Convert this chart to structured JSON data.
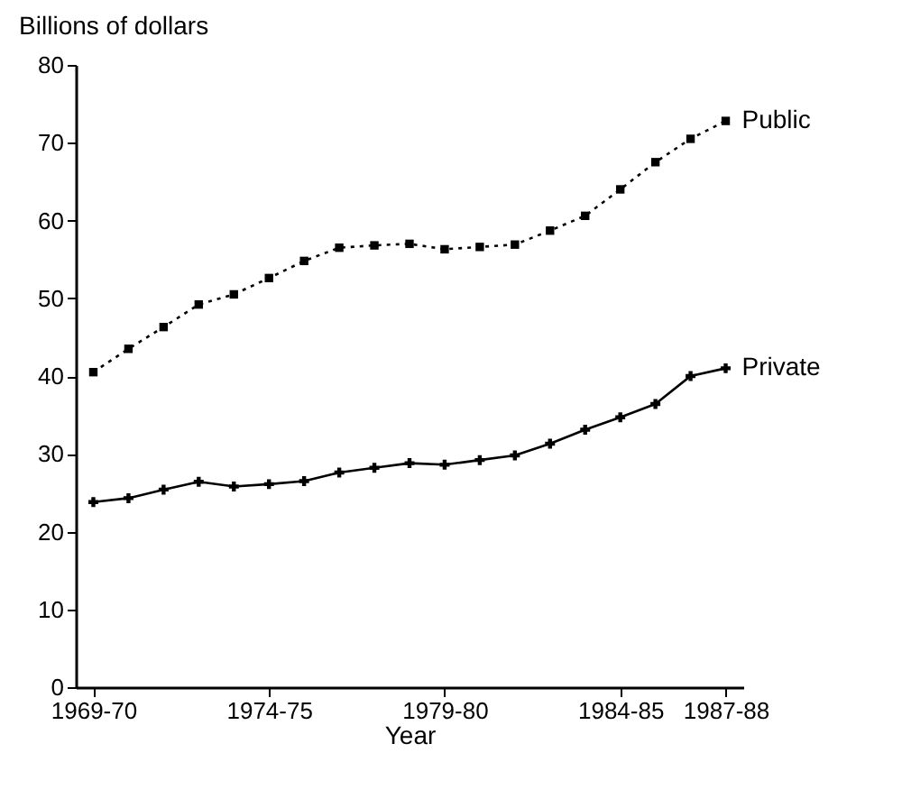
{
  "chart_data": {
    "type": "line",
    "xlabel": "Year",
    "ylabel": "Billions of dollars",
    "categories": [
      "1969-70",
      null,
      null,
      null,
      null,
      "1974-75",
      null,
      null,
      null,
      null,
      "1979-80",
      null,
      null,
      null,
      null,
      "1984-85",
      null,
      null,
      "1987-88"
    ],
    "series": [
      {
        "name": "Public",
        "color": "#000000",
        "line_style": "dotted",
        "marker": "square",
        "values": [
          40.5,
          43.5,
          46.3,
          49.2,
          50.5,
          52.6,
          54.8,
          56.5,
          56.8,
          57.0,
          56.3,
          56.6,
          56.9,
          58.7,
          60.6,
          64.0,
          67.5,
          70.5,
          72.8
        ]
      },
      {
        "name": "Private",
        "color": "#000000",
        "line_style": "solid",
        "marker": "cross",
        "values": [
          23.8,
          24.3,
          25.4,
          26.4,
          25.8,
          26.1,
          26.5,
          27.6,
          28.2,
          28.8,
          28.6,
          29.2,
          29.8,
          31.3,
          33.1,
          34.7,
          36.4,
          40.0,
          41.0
        ]
      }
    ],
    "ylim": [
      0,
      80
    ],
    "yticks": [
      0,
      10,
      20,
      30,
      40,
      50,
      60,
      70,
      80
    ],
    "grid": false,
    "legend": false
  }
}
